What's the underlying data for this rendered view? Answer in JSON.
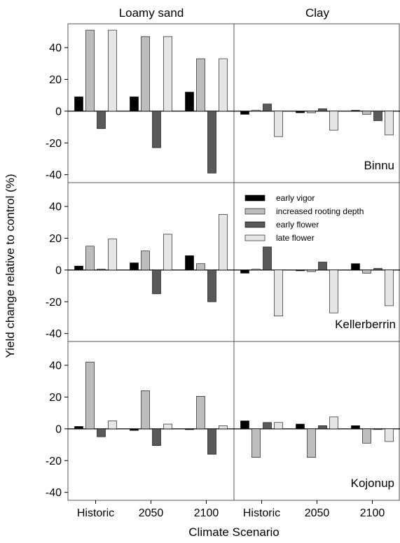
{
  "chart_data": {
    "type": "bar",
    "column_titles": [
      "Loamy sand",
      "Clay"
    ],
    "row_labels": [
      "Binnu",
      "Kellerberrin",
      "Kojonup"
    ],
    "categories": [
      "Historic",
      "2050",
      "2100"
    ],
    "xlabel": "Climate Scenario",
    "ylabel": "Yield change relative to control (%)",
    "ylim": [
      -45,
      55
    ],
    "yticks": [
      -40,
      -20,
      0,
      20,
      40
    ],
    "legend": {
      "placement": "top-left of Kellerberrin / Clay panel",
      "entries": [
        "early vigor",
        "increased rooting depth",
        "early flower",
        "late flower"
      ]
    },
    "series_names": [
      "early vigor",
      "increased rooting depth",
      "early flower",
      "late flower"
    ],
    "series_colors": [
      "#000000",
      "#bdbdbd",
      "#595959",
      "#e6e6e6"
    ],
    "panels": [
      {
        "site": "Binnu",
        "soil": "Loamy sand",
        "values": [
          [
            9,
            9,
            12
          ],
          [
            51,
            47,
            33
          ],
          [
            -11,
            -23,
            -39
          ],
          [
            51,
            47,
            33
          ]
        ]
      },
      {
        "site": "Binnu",
        "soil": "Clay",
        "values": [
          [
            -2,
            -1,
            0.5
          ],
          [
            0.5,
            -1,
            -2
          ],
          [
            4.5,
            1.5,
            -6
          ],
          [
            -16,
            -12,
            -15
          ]
        ]
      },
      {
        "site": "Kellerberrin",
        "soil": "Loamy sand",
        "values": [
          [
            2.5,
            4.5,
            9
          ],
          [
            15,
            12,
            4
          ],
          [
            0.5,
            -15,
            -20
          ],
          [
            19.5,
            22.5,
            35
          ]
        ]
      },
      {
        "site": "Kellerberrin",
        "soil": "Clay",
        "values": [
          [
            -2,
            -0.5,
            4
          ],
          [
            0.5,
            -1,
            -2
          ],
          [
            14.5,
            5,
            1
          ],
          [
            -29,
            -27,
            -22.5
          ]
        ]
      },
      {
        "site": "Kojonup",
        "soil": "Loamy sand",
        "values": [
          [
            1.5,
            -1,
            -0.5
          ],
          [
            42,
            24,
            20.5
          ],
          [
            -5,
            -10.5,
            -16
          ],
          [
            5,
            3,
            2
          ]
        ]
      },
      {
        "site": "Kojonup",
        "soil": "Clay",
        "values": [
          [
            5,
            3,
            2
          ],
          [
            -18,
            -18,
            -9
          ],
          [
            4,
            2,
            0
          ],
          [
            4,
            7.5,
            -8
          ]
        ]
      }
    ]
  }
}
